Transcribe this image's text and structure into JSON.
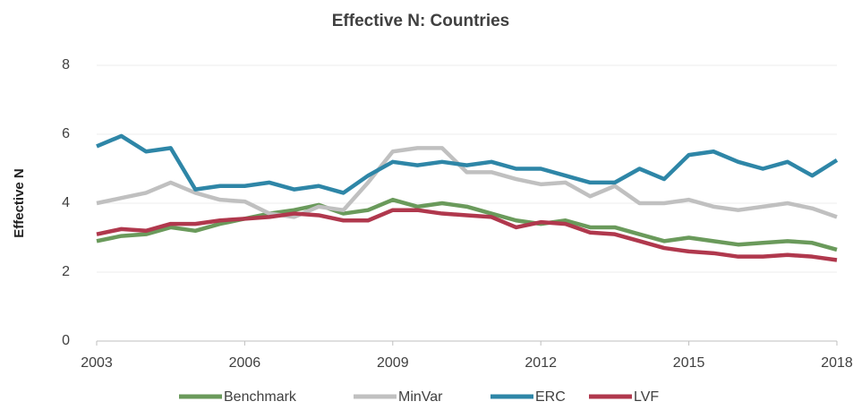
{
  "chart_data": {
    "type": "line",
    "title": "Effective N: Countries",
    "y_label": "Effective N",
    "x": [
      2003,
      2003.5,
      2004,
      2004.5,
      2005,
      2005.5,
      2006,
      2006.5,
      2007,
      2007.5,
      2008,
      2008.5,
      2009,
      2009.5,
      2010,
      2010.5,
      2011,
      2011.5,
      2012,
      2012.5,
      2013,
      2013.5,
      2014,
      2014.5,
      2015,
      2015.5,
      2016,
      2016.5,
      2017,
      2017.5,
      2018
    ],
    "series": [
      {
        "name": "Benchmark",
        "color": "#6a9a5b",
        "values": [
          2.9,
          3.05,
          3.1,
          3.3,
          3.2,
          3.4,
          3.55,
          3.7,
          3.8,
          3.95,
          3.7,
          3.8,
          4.1,
          3.9,
          4.0,
          3.9,
          3.7,
          3.5,
          3.4,
          3.5,
          3.3,
          3.3,
          3.1,
          2.9,
          3.0,
          2.9,
          2.8,
          2.85,
          2.9,
          2.85,
          2.65
        ]
      },
      {
        "name": "MinVar",
        "color": "#c0c0c0",
        "values": [
          4.0,
          4.15,
          4.3,
          4.6,
          4.3,
          4.1,
          4.05,
          3.7,
          3.6,
          3.9,
          3.8,
          4.6,
          5.5,
          5.6,
          5.6,
          4.9,
          4.9,
          4.7,
          4.55,
          4.6,
          4.2,
          4.5,
          4.0,
          4.0,
          4.1,
          3.9,
          3.8,
          3.9,
          4.0,
          3.85,
          3.6
        ]
      },
      {
        "name": "ERC",
        "color": "#2e86a7",
        "values": [
          5.65,
          5.95,
          5.5,
          5.6,
          4.4,
          4.5,
          4.5,
          4.6,
          4.4,
          4.5,
          4.3,
          4.8,
          5.2,
          5.1,
          5.2,
          5.1,
          5.2,
          5.0,
          5.0,
          4.8,
          4.6,
          4.6,
          5.0,
          4.7,
          5.4,
          5.5,
          5.2,
          5.0,
          5.2,
          4.8,
          5.25
        ]
      },
      {
        "name": "LVF",
        "color": "#b0384d",
        "values": [
          3.1,
          3.25,
          3.2,
          3.4,
          3.4,
          3.5,
          3.55,
          3.6,
          3.7,
          3.65,
          3.5,
          3.5,
          3.8,
          3.8,
          3.7,
          3.65,
          3.6,
          3.3,
          3.45,
          3.4,
          3.15,
          3.1,
          2.9,
          2.7,
          2.6,
          2.55,
          2.45,
          2.45,
          2.5,
          2.45,
          2.35
        ]
      }
    ],
    "xlim": [
      2003,
      2018
    ],
    "xticks": [
      2003,
      2006,
      2009,
      2012,
      2015,
      2018
    ],
    "ylim": [
      0,
      8
    ],
    "yticks": [
      0,
      2,
      4,
      6,
      8
    ],
    "grid": true,
    "legend": "bottom"
  }
}
